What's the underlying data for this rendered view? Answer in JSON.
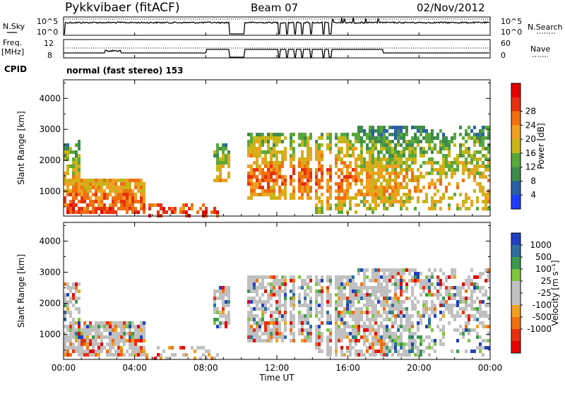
{
  "header": {
    "station": "Pykkvibaer (fitACF)",
    "beam": "Beam 07",
    "date": "02/Nov/2012"
  },
  "side_labels": {
    "nsky": "N.Sky",
    "nsearch": "N.Search",
    "freq": "Freq.",
    "freq_unit": "[MHz]",
    "nave": "Nave",
    "cpid": "CPID"
  },
  "small_axes": {
    "nsky_ticks": [
      "10^5",
      "10^0"
    ],
    "nsearch_ticks": [
      "10^5",
      "10^0"
    ],
    "freq_ticks": [
      "12",
      "8"
    ],
    "nave_ticks": [
      "60",
      "0"
    ]
  },
  "cpid_text": "normal (fast stereo) 153",
  "colors": {
    "power": [
      "#1f3cff",
      "#2a5fa8",
      "#3e8a4d",
      "#5aa83c",
      "#c8b418",
      "#f0a020",
      "#f07010",
      "#e83010",
      "#e60000"
    ],
    "velocity": [
      "#2040c0",
      "#2f6fa0",
      "#3b9a4e",
      "#7cc63c",
      "#c0c0c0",
      "#c0c0c0",
      "#f0a020",
      "#f07010",
      "#e83010",
      "#e60000"
    ],
    "ground_scatter": "#c0c0c0"
  },
  "chart_data": [
    {
      "type": "heatmap",
      "name": "power-panel",
      "ylabel": "Slant Range [km]",
      "x_ticks": [
        "00:00",
        "04:00",
        "08:00",
        "12:00",
        "16:00",
        "20:00",
        "00:00"
      ],
      "y_ticks": [
        1000,
        2000,
        3000,
        4000
      ],
      "ylim": [
        200,
        4600
      ],
      "xlim_hours": [
        0,
        24
      ],
      "colorbar_label": "Power [dB]",
      "colorbar_ticks": [
        4,
        8,
        12,
        16,
        20,
        24,
        28
      ]
    },
    {
      "type": "heatmap",
      "name": "velocity-panel",
      "ylabel": "Slant Range [km]",
      "xlabel": "Time UT",
      "x_ticks": [
        "00:00",
        "04:00",
        "08:00",
        "12:00",
        "16:00",
        "20:00",
        "00:00"
      ],
      "y_ticks": [
        1000,
        2000,
        3000,
        4000
      ],
      "ylim": [
        200,
        4600
      ],
      "xlim_hours": [
        0,
        24
      ],
      "colorbar_label": "Velocity [m s⁻¹]",
      "colorbar_ticks": [
        1000,
        500,
        100,
        25,
        -25,
        -100,
        -500,
        -1000
      ]
    }
  ]
}
